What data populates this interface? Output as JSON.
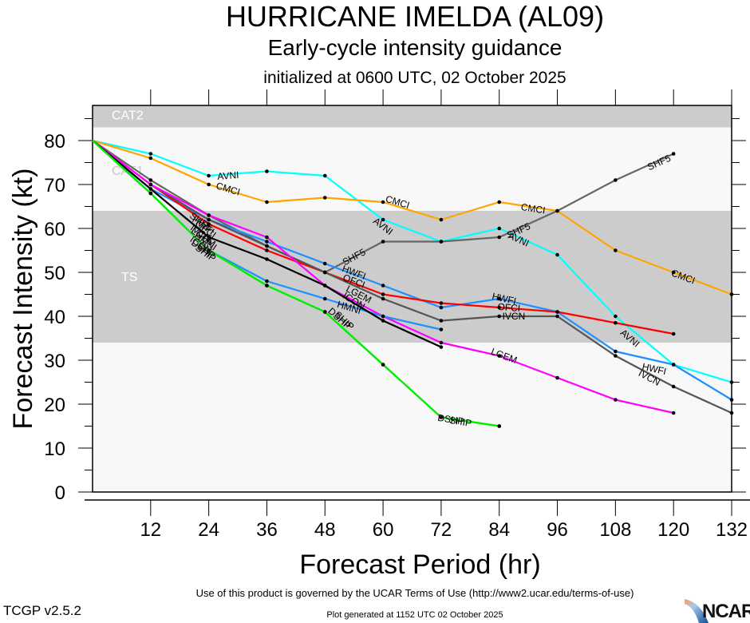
{
  "titles": {
    "main": "HURRICANE IMELDA (AL09)",
    "sub": "Early-cycle intensity guidance",
    "init": "initialized at 0600 UTC, 02 October 2025"
  },
  "footer": {
    "terms": "Use of this product is governed by the UCAR Terms of Use (http://www2.ucar.edu/terms-of-use)",
    "generated": "Plot generated at 1152 UTC   02 October 2025",
    "version": "TCGP v2.5.2",
    "logo": "NCAR"
  },
  "chart_data": {
    "type": "line",
    "title": "HURRICANE IMELDA (AL09)",
    "subtitle": "Early-cycle intensity guidance",
    "xlabel": "Forecast Period (hr)",
    "ylabel": "Forecast Intensity (kt)",
    "xlim": [
      0,
      132
    ],
    "ylim": [
      0,
      88
    ],
    "xticks": [
      12,
      24,
      36,
      48,
      60,
      72,
      84,
      96,
      108,
      120,
      132
    ],
    "yticks": [
      0,
      10,
      20,
      30,
      40,
      50,
      60,
      70,
      80
    ],
    "bands": [
      {
        "label": "TS",
        "from": 34,
        "to": 64,
        "color": "#cccccc"
      },
      {
        "label": "CAT1",
        "from": 64,
        "to": 83,
        "color": "#f8f8f8"
      },
      {
        "label": "CAT2",
        "from": 83,
        "to": 88,
        "color": "#cccccc"
      }
    ],
    "below_band_color": "#f8f8f8",
    "series": [
      {
        "name": "AVNI",
        "color": "#00ffff",
        "x": [
          0,
          12,
          24,
          36,
          48,
          60,
          72,
          84,
          96,
          108,
          120,
          132
        ],
        "values": [
          80,
          77,
          72,
          73,
          72,
          62,
          57,
          60,
          54,
          40,
          29,
          25
        ],
        "label_at": [
          [
            28,
            72
          ],
          [
            60,
            60.5
          ],
          [
            88,
            57.5
          ],
          [
            111,
            35
          ]
        ]
      },
      {
        "name": "CMCI",
        "color": "#ffa500",
        "x": [
          0,
          12,
          24,
          36,
          48,
          60,
          72,
          84,
          96,
          108,
          120,
          132
        ],
        "values": [
          80,
          76,
          70,
          66,
          67,
          66,
          62,
          66,
          64,
          55,
          50,
          45
        ],
        "label_at": [
          [
            28,
            69
          ],
          [
            63,
            66
          ],
          [
            91,
            64.5
          ],
          [
            122,
            49
          ]
        ]
      },
      {
        "name": "SHF5",
        "color": "#666666",
        "x": [
          0,
          12,
          24,
          36,
          48,
          60,
          72,
          84,
          96,
          108,
          120
        ],
        "values": [
          80,
          71,
          63,
          56,
          50,
          57,
          57,
          58,
          64,
          71,
          77
        ],
        "label_at": [
          [
            54,
            53.5
          ],
          [
            88,
            59.5
          ],
          [
            117,
            75
          ]
        ]
      },
      {
        "name": "HWFI",
        "color": "#1e90ff",
        "x": [
          0,
          12,
          24,
          36,
          48,
          60,
          72,
          84,
          96,
          108,
          120,
          132
        ],
        "values": [
          80,
          69,
          62,
          57,
          52,
          47,
          42,
          44,
          41,
          32,
          29,
          21
        ],
        "label_at": [
          [
            54,
            50
          ],
          [
            85,
            44
          ],
          [
            116,
            28
          ]
        ]
      },
      {
        "name": "OFCI",
        "color": "#ff0000",
        "x": [
          0,
          12,
          24,
          36,
          48,
          60,
          72,
          84,
          96,
          108,
          120
        ],
        "values": [
          80,
          70,
          61,
          55,
          50,
          45,
          43,
          42,
          41,
          38.5,
          36
        ],
        "label_at": [
          [
            54,
            48
          ],
          [
            86,
            42
          ]
        ]
      },
      {
        "name": "IVCN",
        "color": "#555555",
        "x": [
          0,
          12,
          24,
          36,
          48,
          60,
          72,
          84,
          96,
          108,
          120,
          132
        ],
        "values": [
          80,
          70,
          62,
          56,
          50,
          44,
          39,
          40,
          40,
          31,
          24,
          18
        ],
        "label_at": [
          [
            87,
            40
          ],
          [
            115,
            26
          ]
        ]
      },
      {
        "name": "LGEM",
        "color": "#ff00ff",
        "x": [
          0,
          12,
          24,
          36,
          48,
          60,
          72,
          84,
          96,
          108,
          120
        ],
        "values": [
          80,
          70,
          63,
          58,
          47,
          40,
          34,
          31,
          26,
          21,
          18
        ],
        "label_at": [
          [
            55,
            45
          ],
          [
            85,
            31
          ]
        ]
      },
      {
        "name": "HMNI",
        "color": "#1e90ff",
        "x": [
          0,
          12,
          24,
          36,
          48,
          60,
          72
        ],
        "values": [
          80,
          68,
          55,
          48,
          44,
          40,
          37
        ],
        "label_at": [
          [
            53,
            42
          ]
        ]
      },
      {
        "name": "ICON",
        "color": "#000000",
        "x": [
          0,
          12,
          24,
          36,
          48,
          60,
          72
        ],
        "values": [
          80,
          69,
          58,
          53,
          47,
          39,
          33
        ],
        "label_at": [
          [
            54,
            43.5
          ]
        ]
      },
      {
        "name": "DSHP",
        "color": "#00ee00",
        "x": [
          0,
          12,
          24,
          36,
          48,
          60,
          72,
          84
        ],
        "values": [
          80,
          68,
          55,
          47,
          41,
          29,
          17,
          15
        ],
        "label_at": [
          [
            51,
            39.5
          ],
          [
            74,
            16.5
          ]
        ]
      },
      {
        "name": "SHIP",
        "color": "#00ee00",
        "x": [
          0,
          12,
          24,
          36,
          48,
          60,
          72,
          84
        ],
        "values": [
          80,
          68,
          55,
          47,
          41,
          29,
          17,
          15
        ],
        "label_at": [
          [
            52,
            39
          ],
          [
            76,
            16
          ]
        ]
      }
    ],
    "cluster_labels_at_24h": [
      "SHF5",
      "HWFI",
      "OFCI",
      "IVCN",
      "LGEM",
      "HMNI",
      "ICON",
      "DSHP",
      "SHIP"
    ],
    "grid": false,
    "legend": "none"
  }
}
